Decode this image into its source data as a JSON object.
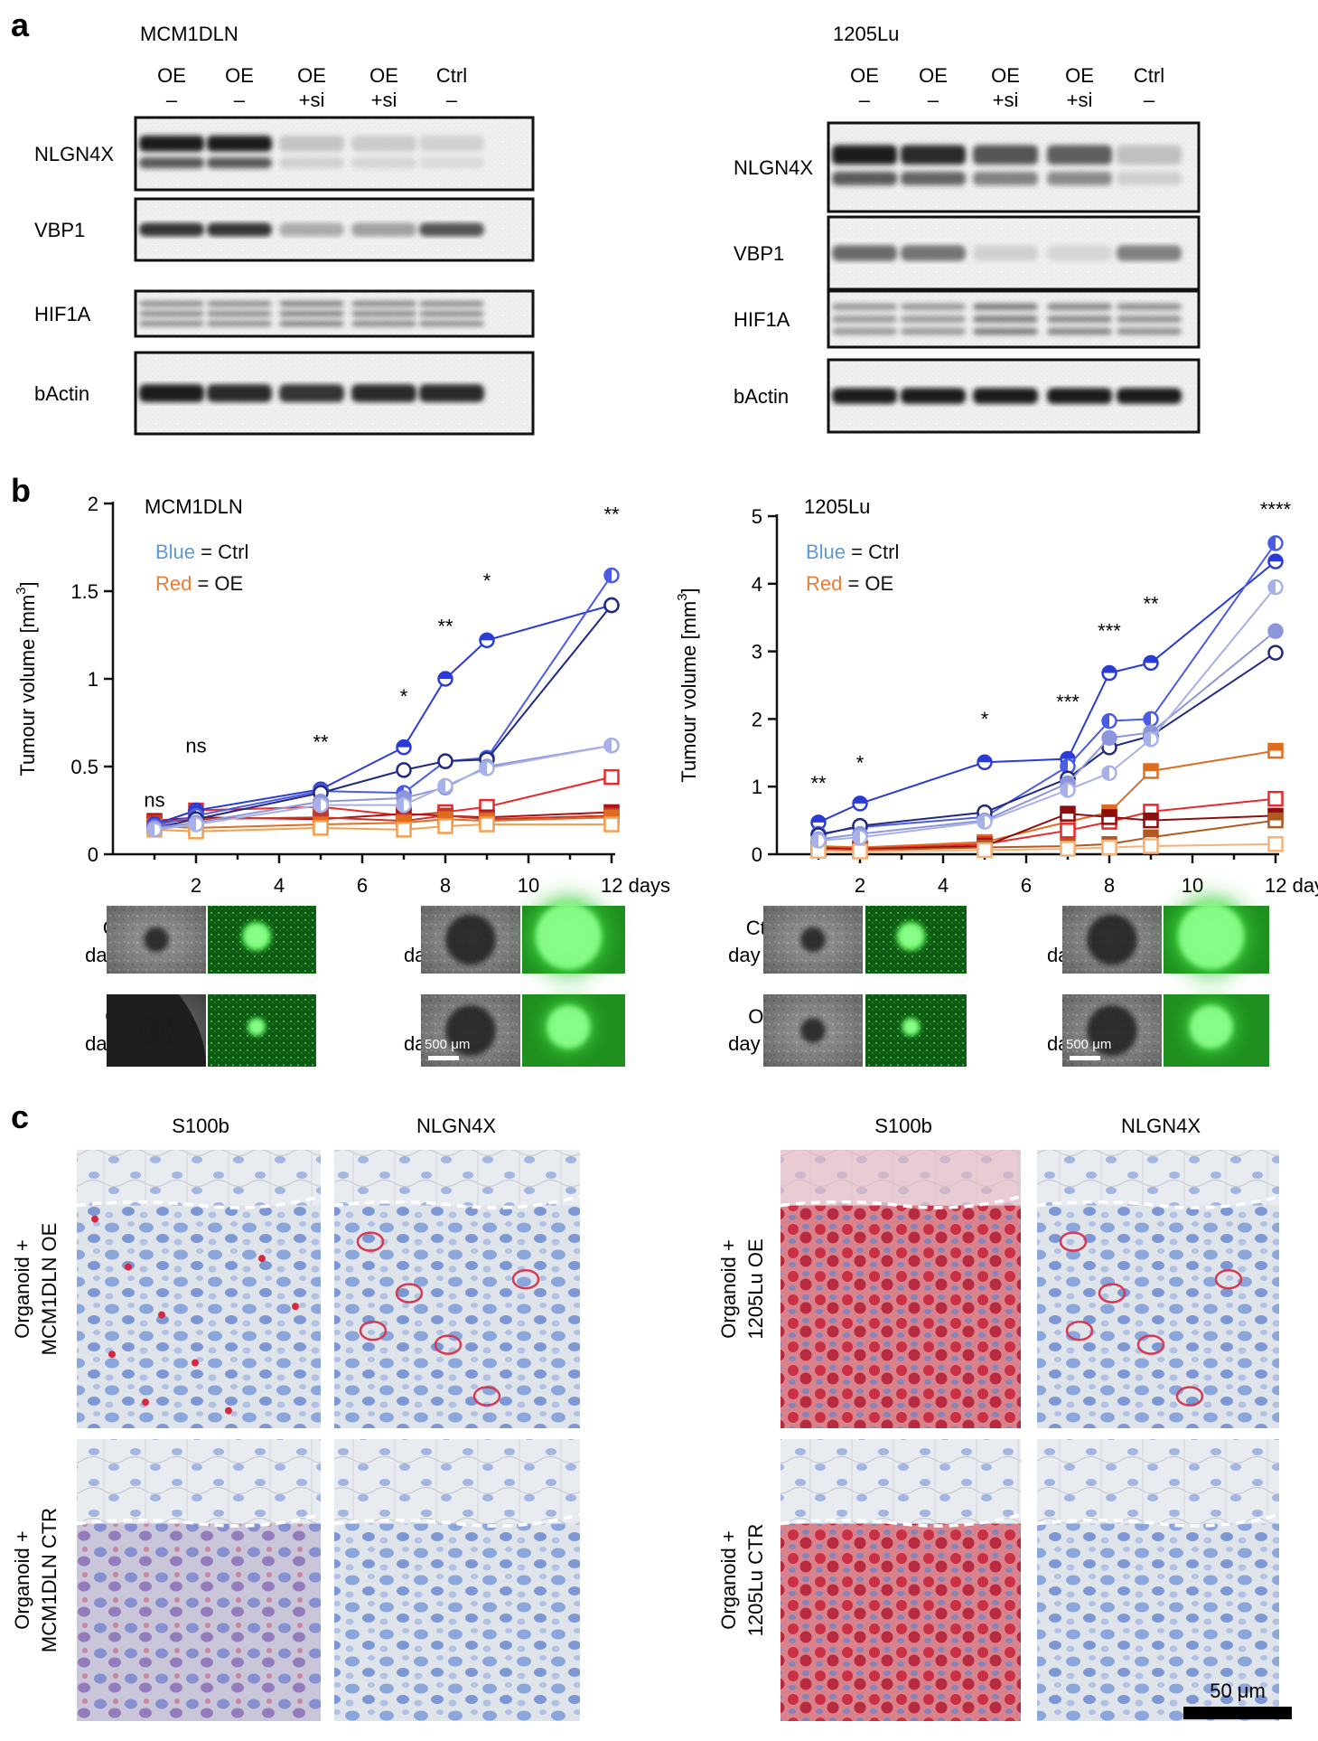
{
  "panels": {
    "a": {
      "letter": "a",
      "blots": [
        {
          "cell_line": "MCM1DLN",
          "lanes": [
            {
              "treatment": "OE",
              "si": "–"
            },
            {
              "treatment": "OE",
              "si": "–"
            },
            {
              "treatment": "OE",
              "si": "+si"
            },
            {
              "treatment": "OE",
              "si": "+si"
            },
            {
              "treatment": "Ctrl",
              "si": "–"
            }
          ],
          "rows": [
            {
              "label": "NLGN4X",
              "intensity": [
                0.95,
                0.95,
                0.18,
                0.15,
                0.12
              ]
            },
            {
              "label": "VBP1",
              "intensity": [
                0.85,
                0.85,
                0.3,
                0.35,
                0.7
              ]
            },
            {
              "label": "HIF1A",
              "intensity": [
                0.6,
                0.6,
                0.65,
                0.62,
                0.6
              ]
            },
            {
              "label": "bActin",
              "intensity": [
                0.95,
                0.9,
                0.85,
                0.9,
                0.9
              ]
            }
          ]
        },
        {
          "cell_line": "1205Lu",
          "lanes": [
            {
              "treatment": "OE",
              "si": "–"
            },
            {
              "treatment": "OE",
              "si": "–"
            },
            {
              "treatment": "OE",
              "si": "+si"
            },
            {
              "treatment": "OE",
              "si": "+si"
            },
            {
              "treatment": "Ctrl",
              "si": "–"
            }
          ],
          "rows": [
            {
              "label": "NLGN4X",
              "intensity": [
                0.95,
                0.9,
                0.7,
                0.65,
                0.2
              ]
            },
            {
              "label": "VBP1",
              "intensity": [
                0.6,
                0.55,
                0.12,
                0.1,
                0.5
              ]
            },
            {
              "label": "HIF1A",
              "intensity": [
                0.5,
                0.5,
                0.65,
                0.6,
                0.55
              ]
            },
            {
              "label": "bActin",
              "intensity": [
                0.95,
                0.95,
                0.95,
                0.95,
                0.95
              ]
            }
          ]
        }
      ]
    },
    "b": {
      "letter": "b",
      "legend": {
        "blue_word": "Blue",
        "blue_rest": " = Ctrl",
        "red_word": "Red",
        "red_rest": " = OE"
      },
      "colors": {
        "blue_word": "#5b9bd5",
        "red_word": "#ed7d31"
      },
      "images": {
        "rows": [
          {
            "line1": "Ctrl",
            "line2": "day 2"
          },
          {
            "line1": "OE",
            "line2": "day 2"
          }
        ],
        "rows12": [
          {
            "line1": "Ctrl",
            "line2": "day 12"
          },
          {
            "line1": "OE",
            "line2": "day 12"
          }
        ],
        "scale_label": "500 μm"
      }
    },
    "c": {
      "letter": "c",
      "stain_labels": [
        "S100b",
        "NLGN4X"
      ],
      "rows_left": [
        {
          "line1": "Organoid +",
          "line2": "MCM1DLN OE"
        },
        {
          "line1": "Organoid +",
          "line2": "MCM1DLN CTR"
        }
      ],
      "rows_right": [
        {
          "line1": "Organoid +",
          "line2": "1205Lu OE"
        },
        {
          "line1": "Organoid +",
          "line2": "1205Lu CTR"
        }
      ],
      "scale_label": "50 μm"
    }
  },
  "chart_data": [
    {
      "type": "line",
      "title": "MCM1DLN",
      "ylabel": "Tumour volume [mm3]",
      "xlabel": "days",
      "x_ticks": [
        2,
        4,
        6,
        8,
        10,
        12
      ],
      "x_tick_labels": [
        "2",
        "4",
        "6",
        "8",
        "10",
        "12 days"
      ],
      "y_ticks": [
        0,
        0.5,
        1,
        1.5,
        2
      ],
      "y_tick_labels": [
        "0",
        "0.5",
        "1",
        "1.5",
        "2"
      ],
      "xlim": [
        0,
        12.5
      ],
      "ylim": [
        0,
        2
      ],
      "x": [
        1,
        2,
        5,
        7,
        8,
        9,
        12
      ],
      "significance": [
        {
          "x": 1,
          "label": "ns",
          "y": 0.27
        },
        {
          "x": 2,
          "label": "ns",
          "y": 0.58
        },
        {
          "x": 5,
          "label": "**",
          "y": 0.6
        },
        {
          "x": 7,
          "label": "*",
          "y": 0.86
        },
        {
          "x": 8,
          "label": "**",
          "y": 1.26
        },
        {
          "x": 9,
          "label": "*",
          "y": 1.52
        },
        {
          "x": 12,
          "label": "**",
          "y": 1.9
        }
      ],
      "series": [
        {
          "name": "Ctrl 1",
          "group": "Ctrl",
          "color": "#2b3bd6",
          "marker": "circle-top",
          "values": [
            0.17,
            0.25,
            0.37,
            0.61,
            1.0,
            1.22,
            1.42
          ]
        },
        {
          "name": "Ctrl 2",
          "group": "Ctrl",
          "color": "#4a5ce6",
          "marker": "circle-half",
          "values": [
            0.16,
            0.22,
            0.36,
            0.35,
            0.53,
            0.55,
            1.59
          ]
        },
        {
          "name": "Ctrl 3",
          "group": "Ctrl",
          "color": "#1f2a80",
          "marker": "circle-open",
          "values": [
            0.15,
            0.2,
            0.35,
            0.48,
            0.53,
            0.54,
            1.42
          ]
        },
        {
          "name": "Ctrl 4",
          "group": "Ctrl",
          "color": "#8c96d8",
          "marker": "circle-filled",
          "values": [
            0.15,
            0.18,
            0.3,
            0.32,
            0.38,
            0.5,
            0.62
          ]
        },
        {
          "name": "Ctrl 5",
          "group": "Ctrl",
          "color": "#a7b0e8",
          "marker": "circle-half",
          "values": [
            0.14,
            0.17,
            0.28,
            0.28,
            0.39,
            0.49,
            0.62
          ]
        },
        {
          "name": "OE 1",
          "group": "OE",
          "color": "#e8282a",
          "marker": "square-open",
          "values": [
            0.17,
            0.25,
            0.27,
            0.22,
            0.24,
            0.27,
            0.44
          ]
        },
        {
          "name": "OE 2",
          "group": "OE",
          "color": "#b01010",
          "marker": "square-filled",
          "values": [
            0.19,
            0.21,
            0.2,
            0.23,
            0.22,
            0.21,
            0.24
          ]
        },
        {
          "name": "OE 3",
          "group": "OE",
          "color": "#c0392b",
          "marker": "square-half",
          "values": [
            0.18,
            0.2,
            0.21,
            0.19,
            0.22,
            0.2,
            0.22
          ]
        },
        {
          "name": "OE 4",
          "group": "OE",
          "color": "#e06c1f",
          "marker": "square-half",
          "values": [
            0.16,
            0.15,
            0.17,
            0.18,
            0.2,
            0.19,
            0.21
          ]
        },
        {
          "name": "OE 5",
          "group": "OE",
          "color": "#f0a050",
          "marker": "square-open",
          "values": [
            0.14,
            0.13,
            0.15,
            0.14,
            0.16,
            0.17,
            0.17
          ]
        }
      ]
    },
    {
      "type": "line",
      "title": "1205Lu",
      "ylabel": "Tumour volume [mm3]",
      "xlabel": "days",
      "x_ticks": [
        2,
        4,
        6,
        8,
        10,
        12
      ],
      "x_tick_labels": [
        "2",
        "4",
        "6",
        "8",
        "10",
        "12 days"
      ],
      "y_ticks": [
        0,
        1,
        2,
        3,
        4,
        5
      ],
      "y_tick_labels": [
        "0",
        "1",
        "2",
        "3",
        "4",
        "5"
      ],
      "xlim": [
        0,
        12.5
      ],
      "ylim": [
        0,
        5
      ],
      "x": [
        1,
        2,
        5,
        7,
        8,
        9,
        12
      ],
      "significance": [
        {
          "x": 1,
          "label": "**",
          "y": 0.95
        },
        {
          "x": 2,
          "label": "*",
          "y": 1.25
        },
        {
          "x": 5,
          "label": "*",
          "y": 1.9
        },
        {
          "x": 7,
          "label": "***",
          "y": 2.15
        },
        {
          "x": 8,
          "label": "***",
          "y": 3.2
        },
        {
          "x": 9,
          "label": "**",
          "y": 3.6
        },
        {
          "x": 12,
          "label": "****",
          "y": 5.0
        }
      ],
      "series": [
        {
          "name": "Ctrl 1",
          "group": "Ctrl",
          "color": "#2b3bd6",
          "marker": "circle-top",
          "values": [
            0.47,
            0.75,
            1.36,
            1.41,
            2.68,
            2.83,
            4.33
          ]
        },
        {
          "name": "Ctrl 2",
          "group": "Ctrl",
          "color": "#4a5ce6",
          "marker": "circle-half",
          "values": [
            0.3,
            0.4,
            0.55,
            1.3,
            1.97,
            2.0,
            4.6
          ]
        },
        {
          "name": "Ctrl 3",
          "group": "Ctrl",
          "color": "#1f2a80",
          "marker": "circle-open",
          "values": [
            0.28,
            0.42,
            0.62,
            1.12,
            1.58,
            1.75,
            2.98
          ]
        },
        {
          "name": "Ctrl 4",
          "group": "Ctrl",
          "color": "#8c96d8",
          "marker": "circle-filled",
          "values": [
            0.22,
            0.3,
            0.5,
            1.05,
            1.72,
            1.8,
            3.3
          ]
        },
        {
          "name": "Ctrl 5",
          "group": "Ctrl",
          "color": "#a7b0e8",
          "marker": "circle-half",
          "values": [
            0.2,
            0.25,
            0.48,
            0.95,
            1.2,
            1.7,
            3.95
          ]
        },
        {
          "name": "OE 1",
          "group": "OE",
          "color": "#e06c1f",
          "marker": "square-half",
          "values": [
            0.12,
            0.1,
            0.18,
            0.48,
            0.62,
            1.23,
            1.53
          ]
        },
        {
          "name": "OE 2",
          "group": "OE",
          "color": "#e8282a",
          "marker": "square-open",
          "values": [
            0.1,
            0.08,
            0.15,
            0.35,
            0.48,
            0.63,
            0.82
          ]
        },
        {
          "name": "OE 3",
          "group": "OE",
          "color": "#8b0f0f",
          "marker": "square-half",
          "values": [
            0.08,
            0.07,
            0.12,
            0.6,
            0.55,
            0.5,
            0.57
          ]
        },
        {
          "name": "OE 4",
          "group": "OE",
          "color": "#b05a20",
          "marker": "square-half",
          "values": [
            0.07,
            0.06,
            0.1,
            0.12,
            0.15,
            0.25,
            0.5
          ]
        },
        {
          "name": "OE 5",
          "group": "OE",
          "color": "#f3b27a",
          "marker": "square-open",
          "values": [
            0.05,
            0.04,
            0.06,
            0.08,
            0.1,
            0.12,
            0.15
          ]
        }
      ]
    }
  ]
}
